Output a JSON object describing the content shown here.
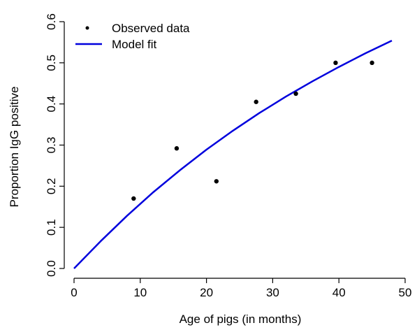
{
  "chart_data": {
    "type": "scatter",
    "xlabel": "Age of pigs (in months)",
    "ylabel": "Proportion IgG positive",
    "xlim": [
      0,
      50
    ],
    "ylim": [
      0,
      0.6
    ],
    "xticks": [
      "0",
      "10",
      "20",
      "30",
      "40",
      "50"
    ],
    "yticks": [
      "0.0",
      "0.1",
      "0.2",
      "0.3",
      "0.4",
      "0.5",
      "0.6"
    ],
    "grid": false,
    "legend_position": "top-left",
    "series": [
      {
        "name": "Observed data",
        "kind": "points",
        "color": "#000000",
        "x": [
          9,
          15.5,
          21.5,
          27.5,
          33.5,
          39.5,
          45
        ],
        "y": [
          0.17,
          0.292,
          0.212,
          0.405,
          0.425,
          0.5,
          0.5
        ]
      },
      {
        "name": "Model fit",
        "kind": "line",
        "color": "#0000dd",
        "x": [
          0,
          4,
          8,
          12,
          16,
          20,
          24,
          28,
          32,
          36,
          40,
          44,
          48
        ],
        "y": [
          0.0,
          0.066,
          0.128,
          0.186,
          0.239,
          0.289,
          0.335,
          0.378,
          0.418,
          0.455,
          0.49,
          0.523,
          0.554
        ]
      }
    ]
  }
}
